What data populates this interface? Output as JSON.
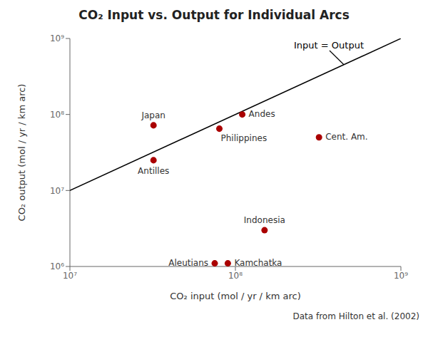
{
  "chart_data": {
    "type": "scatter",
    "title": "CO₂ Input vs. Output for Individual Arcs",
    "x_label": "CO₂ input (mol / yr / km arc)",
    "y_label": "CO₂ output (mol / yr / km arc)",
    "log": true,
    "grid": false,
    "xlim": [
      10000000,
      1000000000
    ],
    "ylim": [
      1000000,
      1000000000
    ],
    "xticks": [
      {
        "value": 10000000,
        "label": "10⁷"
      },
      {
        "value": 100000000,
        "label": "10⁸"
      },
      {
        "value": 1000000000,
        "label": "10⁹"
      }
    ],
    "yticks": [
      {
        "value": 1000000,
        "label": "10⁶"
      },
      {
        "value": 10000000,
        "label": "10⁷"
      },
      {
        "value": 100000000,
        "label": "10⁸"
      },
      {
        "value": 1000000000,
        "label": "10⁹"
      }
    ],
    "color": "#aa0000",
    "points": [
      {
        "label": "Japan",
        "x": 32000000,
        "y": 72000000
      },
      {
        "label": "Andes",
        "x": 110000000,
        "y": 100000000
      },
      {
        "label": "Philippines",
        "x": 80000000,
        "y": 65000000
      },
      {
        "label": "Cent. Am.",
        "x": 320000000,
        "y": 50000000
      },
      {
        "label": "Antilles",
        "x": 32000000,
        "y": 25000000
      },
      {
        "label": "Indonesia",
        "x": 150000000,
        "y": 3000000
      },
      {
        "label": "Aleutians",
        "x": 75000000,
        "y": 1100000
      },
      {
        "label": "Kamchatka",
        "x": 90000000,
        "y": 1100000
      }
    ],
    "line": {
      "label": "Input = Output",
      "x": [
        10000000,
        1000000000
      ],
      "y": [
        10000000,
        1000000000
      ],
      "color": "black"
    },
    "source": "Data from Hilton et al. (2002)"
  }
}
